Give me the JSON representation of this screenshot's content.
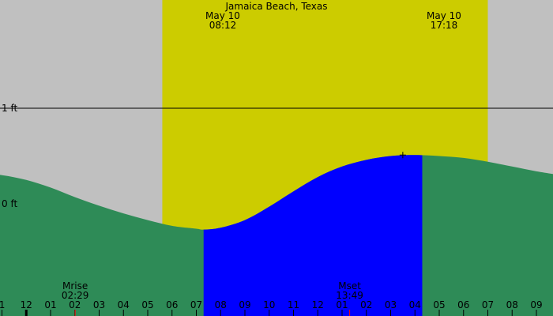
{
  "colors": {
    "night": "#c0c0c0",
    "daylight": "#cccc00",
    "tide_fill": "#2e8b57",
    "highlight_fill": "#0000ff",
    "axis_text": "#000000",
    "moon_tick": "#ff0000"
  },
  "chart_data": {
    "type": "area",
    "title": "Jamaica Beach, Texas",
    "x_unit": "hour",
    "x_range": [
      -1,
      33
    ],
    "y_unit": "ft",
    "y_range": [
      -1.3,
      1.8
    ],
    "y_ticks": [
      {
        "value": 1,
        "label": "1 ft"
      },
      {
        "value": 0,
        "label": "0 ft"
      }
    ],
    "x_ticks": [
      {
        "hour": 0,
        "label": "1"
      },
      {
        "hour": 1,
        "label": "12"
      },
      {
        "hour": 2,
        "label": "01"
      },
      {
        "hour": 3,
        "label": "02"
      },
      {
        "hour": 4,
        "label": "03"
      },
      {
        "hour": 5,
        "label": "04"
      },
      {
        "hour": 6,
        "label": "05"
      },
      {
        "hour": 7,
        "label": "06"
      },
      {
        "hour": 8,
        "label": "07"
      },
      {
        "hour": 9,
        "label": "08"
      },
      {
        "hour": 10,
        "label": "09"
      },
      {
        "hour": 11,
        "label": "10"
      },
      {
        "hour": 12,
        "label": "11"
      },
      {
        "hour": 13,
        "label": "12"
      },
      {
        "hour": 14,
        "label": "01"
      },
      {
        "hour": 15,
        "label": "02"
      },
      {
        "hour": 16,
        "label": "03"
      },
      {
        "hour": 17,
        "label": "04"
      },
      {
        "hour": 18,
        "label": "05"
      },
      {
        "hour": 19,
        "label": "06"
      },
      {
        "hour": 20,
        "label": "07"
      },
      {
        "hour": 21,
        "label": "08"
      },
      {
        "hour": 22,
        "label": "09"
      }
    ],
    "daylight": {
      "start": 6.6,
      "end": 20.0
    },
    "sunrise_label": {
      "date": "May 10",
      "time": "08:12"
    },
    "sunset_label": {
      "date": "May 10",
      "time": "17:18"
    },
    "highlight_span": {
      "start": 8.3,
      "end": 17.3
    },
    "tide_points": [
      {
        "x": -1,
        "y": 0.32
      },
      {
        "x": 0,
        "y": 0.3
      },
      {
        "x": 1,
        "y": 0.25
      },
      {
        "x": 2,
        "y": 0.17
      },
      {
        "x": 3,
        "y": 0.07
      },
      {
        "x": 4,
        "y": -0.02
      },
      {
        "x": 5,
        "y": -0.1
      },
      {
        "x": 6,
        "y": -0.17
      },
      {
        "x": 7,
        "y": -0.23
      },
      {
        "x": 8,
        "y": -0.26
      },
      {
        "x": 8.3,
        "y": -0.27
      },
      {
        "x": 9,
        "y": -0.25
      },
      {
        "x": 10,
        "y": -0.17
      },
      {
        "x": 11,
        "y": -0.03
      },
      {
        "x": 12,
        "y": 0.13
      },
      {
        "x": 13,
        "y": 0.28
      },
      {
        "x": 14,
        "y": 0.39
      },
      {
        "x": 15,
        "y": 0.46
      },
      {
        "x": 16,
        "y": 0.5
      },
      {
        "x": 17,
        "y": 0.51
      },
      {
        "x": 18,
        "y": 0.5
      },
      {
        "x": 19,
        "y": 0.48
      },
      {
        "x": 20,
        "y": 0.44
      },
      {
        "x": 21,
        "y": 0.39
      },
      {
        "x": 22,
        "y": 0.34
      },
      {
        "x": 23,
        "y": 0.3
      }
    ],
    "peak_marker": {
      "x": 16.5,
      "y": 0.51
    },
    "moon_events": [
      {
        "name": "Mrise",
        "time": "02:29",
        "hour": 3.5
      },
      {
        "name": "Mset",
        "time": "13:49",
        "hour": 14.8
      }
    ]
  }
}
